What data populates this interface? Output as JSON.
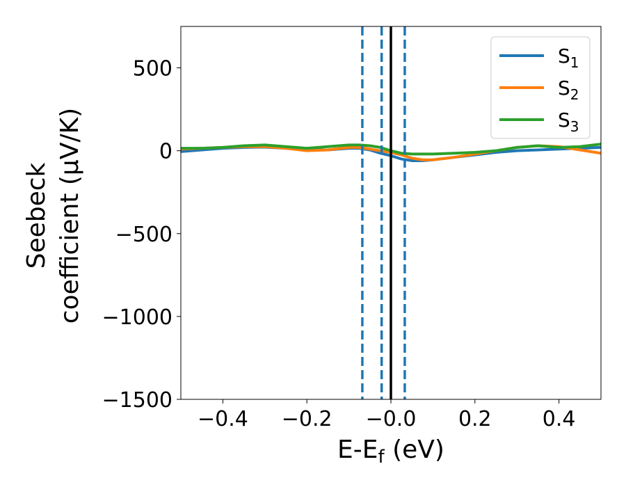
{
  "chart_data": {
    "type": "line",
    "xlabel": "E-E_f (eV)",
    "xlabel_parts": {
      "main": "E-E",
      "sub": "f",
      "tail": " (eV)"
    },
    "ylabel_lines": [
      "Seebeck",
      "coefficient  (μV/K)"
    ],
    "xlim": [
      -0.5,
      0.5
    ],
    "ylim": [
      -1500,
      750
    ],
    "xticks": [
      -0.4,
      -0.2,
      0.0,
      0.2,
      0.4
    ],
    "xtick_labels": [
      "−0.4",
      "−0.2",
      "−0.0",
      "0.2",
      "0.4"
    ],
    "yticks": [
      500,
      0,
      -500,
      -1000,
      -1500
    ],
    "ytick_labels": [
      "500",
      "0",
      "−500",
      "−1000",
      "−1500"
    ],
    "grid": false,
    "legend_position": "top-right",
    "series": [
      {
        "name": "S1",
        "name_parts": {
          "main": "S",
          "sub": "1"
        },
        "color": "#1f77b4",
        "x": [
          -0.5,
          -0.45,
          -0.4,
          -0.35,
          -0.3,
          -0.25,
          -0.2,
          -0.15,
          -0.1,
          -0.075,
          -0.05,
          -0.025,
          0.0,
          0.025,
          0.05,
          0.075,
          0.1,
          0.15,
          0.2,
          0.25,
          0.3,
          0.35,
          0.4,
          0.45,
          0.5
        ],
        "y": [
          -5,
          5,
          15,
          20,
          22,
          15,
          5,
          5,
          15,
          15,
          5,
          -15,
          -30,
          -50,
          -60,
          -60,
          -55,
          -40,
          -25,
          -10,
          0,
          5,
          10,
          15,
          20
        ]
      },
      {
        "name": "S2",
        "name_parts": {
          "main": "S",
          "sub": "2"
        },
        "color": "#ff7f0e",
        "x": [
          -0.5,
          -0.45,
          -0.4,
          -0.35,
          -0.3,
          -0.25,
          -0.2,
          -0.15,
          -0.1,
          -0.075,
          -0.05,
          -0.025,
          0.0,
          0.025,
          0.05,
          0.075,
          0.1,
          0.15,
          0.2,
          0.25,
          0.3,
          0.35,
          0.4,
          0.45,
          0.5
        ],
        "y": [
          10,
          15,
          20,
          25,
          25,
          15,
          0,
          5,
          20,
          20,
          10,
          0,
          -10,
          -25,
          -45,
          -55,
          -55,
          -40,
          -20,
          0,
          20,
          30,
          25,
          5,
          -15
        ]
      },
      {
        "name": "S3",
        "name_parts": {
          "main": "S",
          "sub": "3"
        },
        "color": "#2ca02c",
        "x": [
          -0.5,
          -0.45,
          -0.4,
          -0.35,
          -0.3,
          -0.25,
          -0.2,
          -0.15,
          -0.1,
          -0.075,
          -0.05,
          -0.025,
          0.0,
          0.025,
          0.05,
          0.075,
          0.1,
          0.15,
          0.2,
          0.25,
          0.3,
          0.35,
          0.4,
          0.45,
          0.5
        ],
        "y": [
          15,
          15,
          20,
          30,
          35,
          25,
          15,
          25,
          35,
          35,
          30,
          20,
          0,
          -15,
          -20,
          -20,
          -20,
          -15,
          -10,
          0,
          20,
          30,
          20,
          25,
          40
        ]
      }
    ],
    "vlines": [
      {
        "x": -0.068,
        "style": "dashed",
        "color": "#1f77b4"
      },
      {
        "x": -0.022,
        "style": "dashed",
        "color": "#1f77b4"
      },
      {
        "x": 0.0,
        "style": "solid",
        "color": "#000000"
      },
      {
        "x": 0.033,
        "style": "dashed",
        "color": "#1f77b4"
      }
    ]
  }
}
